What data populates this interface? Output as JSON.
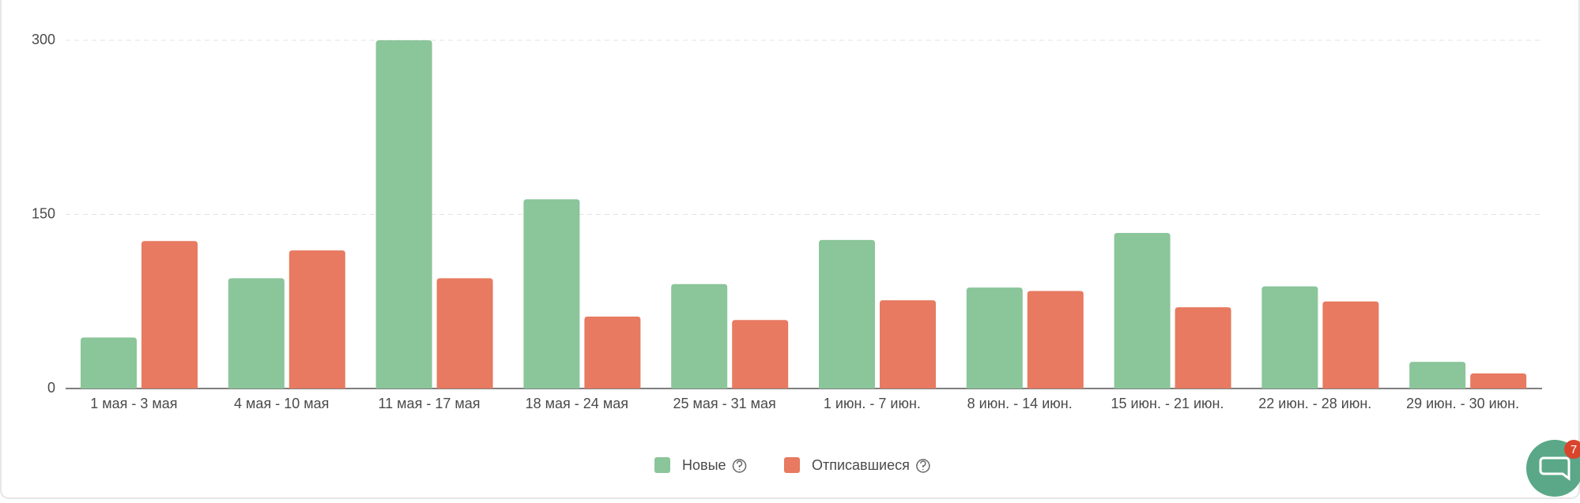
{
  "chart_data": {
    "type": "bar",
    "categories": [
      "1 мая - 3 мая",
      "4 мая - 10 мая",
      "11 мая - 17 мая",
      "18 мая - 24 мая",
      "25 мая - 31 мая",
      "1 июн. - 7 июн.",
      "8 июн. - 14 июн.",
      "15 июн. - 21 июн.",
      "22 июн. - 28 июн.",
      "29 июн. - 30 июн."
    ],
    "series": [
      {
        "name": "Новые",
        "color": "#8bc59a",
        "values": [
          44,
          95,
          300,
          163,
          90,
          128,
          87,
          134,
          88,
          23
        ]
      },
      {
        "name": "Отписавшиеся",
        "color": "#e77a60",
        "values": [
          127,
          119,
          95,
          62,
          59,
          76,
          84,
          70,
          75,
          13
        ]
      }
    ],
    "ylim": [
      0,
      300
    ],
    "yticks": [
      0,
      150,
      300
    ],
    "grid": true,
    "legend": "bottom"
  },
  "chat_widget": {
    "badge": "7"
  }
}
